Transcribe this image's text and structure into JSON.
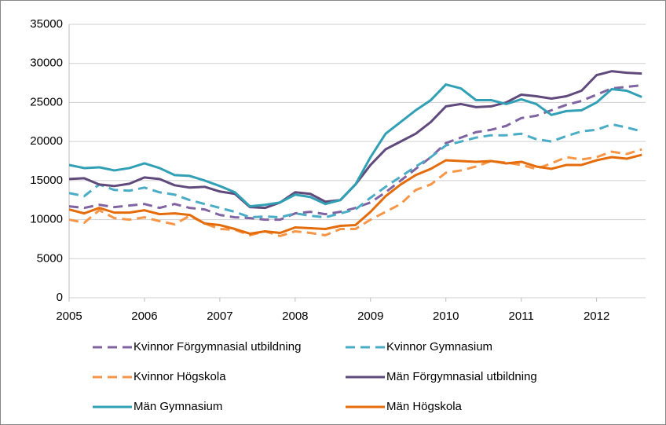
{
  "chart_data": {
    "type": "line",
    "x": [
      2005,
      2005.2,
      2005.4,
      2005.6,
      2005.8,
      2006,
      2006.2,
      2006.4,
      2006.6,
      2006.8,
      2007,
      2007.2,
      2007.4,
      2007.6,
      2007.8,
      2008,
      2008.2,
      2008.4,
      2008.6,
      2008.8,
      2009,
      2009.2,
      2009.4,
      2009.6,
      2009.8,
      2010,
      2010.2,
      2010.4,
      2010.6,
      2010.8,
      2011,
      2011.2,
      2011.4,
      2011.6,
      2011.8,
      2012,
      2012.2,
      2012.4,
      2012.6
    ],
    "xlim": [
      2005,
      2012.65
    ],
    "xticks": [
      2005,
      2006,
      2007,
      2008,
      2009,
      2010,
      2011,
      2012
    ],
    "ylim": [
      0,
      35000
    ],
    "yticks": [
      0,
      5000,
      10000,
      15000,
      20000,
      25000,
      30000,
      35000
    ],
    "grid": true,
    "series": [
      {
        "name": "Kvinnor Förgymnasial utbildning",
        "color": "#8064a2",
        "dashed": true,
        "values": [
          11700,
          11500,
          11900,
          11600,
          11800,
          12000,
          11500,
          12000,
          11500,
          11300,
          10600,
          10300,
          10200,
          10000,
          10000,
          10800,
          11000,
          10700,
          11000,
          11500,
          12200,
          13500,
          15000,
          16500,
          18000,
          19800,
          20500,
          21200,
          21500,
          22000,
          23000,
          23300,
          24000,
          24700,
          25200,
          26000,
          26800,
          27000,
          27200
        ]
      },
      {
        "name": "Kvinnor Gymnasium",
        "color": "#4bacc6",
        "dashed": true,
        "values": [
          13400,
          13000,
          14500,
          13800,
          13700,
          14100,
          13500,
          13200,
          12500,
          12000,
          11500,
          11000,
          10300,
          10400,
          10300,
          10800,
          10500,
          10300,
          10800,
          11300,
          12800,
          14200,
          15500,
          16800,
          18000,
          19500,
          20000,
          20500,
          20800,
          20800,
          21000,
          20300,
          20000,
          20700,
          21300,
          21500,
          22200,
          21800,
          21300
        ]
      },
      {
        "name": "Kvinnor Högskola",
        "color": "#f79646",
        "dashed": true,
        "values": [
          10000,
          9600,
          11200,
          10200,
          10000,
          10300,
          9800,
          9400,
          10500,
          9500,
          8800,
          8700,
          8000,
          8500,
          7900,
          8500,
          8300,
          8000,
          8800,
          8800,
          10000,
          11000,
          12000,
          13800,
          14500,
          16000,
          16300,
          16800,
          17500,
          17300,
          17000,
          16500,
          17200,
          18000,
          17700,
          18000,
          18700,
          18400,
          19000
        ]
      },
      {
        "name": "Män Förgymnasial utbildning",
        "color": "#604a7b",
        "dashed": false,
        "values": [
          15200,
          15300,
          14500,
          14300,
          14600,
          15400,
          15200,
          14400,
          14100,
          14200,
          13600,
          13300,
          11600,
          11500,
          12200,
          13500,
          13300,
          12300,
          12500,
          14500,
          17000,
          19000,
          20000,
          21000,
          22500,
          24500,
          24800,
          24400,
          24500,
          25000,
          26000,
          25800,
          25500,
          25800,
          26500,
          28500,
          29000,
          28800,
          28700
        ]
      },
      {
        "name": "Män Gymnasium",
        "color": "#31a0b5",
        "dashed": false,
        "values": [
          17000,
          16600,
          16700,
          16300,
          16600,
          17200,
          16600,
          15700,
          15600,
          15000,
          14300,
          13500,
          11700,
          11900,
          12200,
          13200,
          12900,
          12000,
          12500,
          14500,
          18000,
          21000,
          22500,
          24000,
          25300,
          27300,
          26800,
          25300,
          25300,
          24800,
          25400,
          24800,
          23400,
          23900,
          24000,
          25000,
          26700,
          26500,
          25700
        ]
      },
      {
        "name": "Män Högskola",
        "color": "#e46c0a",
        "dashed": false,
        "values": [
          11300,
          10800,
          11500,
          10900,
          10900,
          11200,
          10700,
          10800,
          10600,
          9500,
          9300,
          8800,
          8200,
          8500,
          8300,
          9000,
          8900,
          8800,
          9200,
          9300,
          11000,
          13000,
          14500,
          15700,
          16500,
          17600,
          17500,
          17400,
          17500,
          17200,
          17400,
          16800,
          16500,
          17000,
          17000,
          17600,
          18000,
          17800,
          18300
        ]
      }
    ]
  }
}
